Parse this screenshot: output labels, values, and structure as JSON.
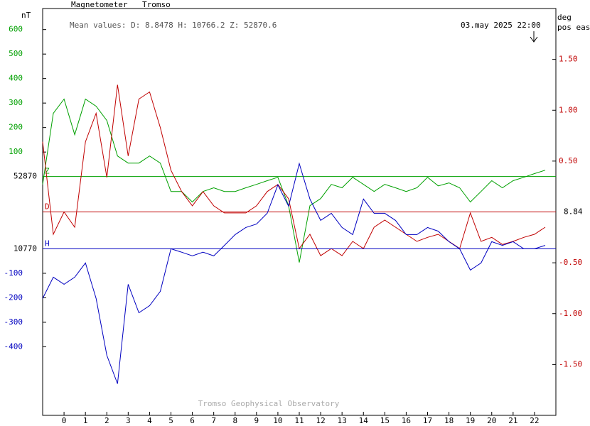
{
  "chart_data": {
    "type": "line",
    "title": "Magnetometer",
    "station": "Tromso",
    "left_unit": "nT",
    "right_unit": "deg",
    "right_unit_note": "pos east",
    "mean_values": "Mean values:  D: 8.8478   H: 10766.2   Z: 52870.6",
    "timestamp": "03.may 2025 22:00",
    "footer": "Tromso Geophysical Observatory",
    "x": [
      -1,
      -0.5,
      0,
      0.5,
      1,
      1.5,
      2,
      2.5,
      3,
      3.5,
      4,
      4.5,
      5,
      5.5,
      6,
      6.5,
      7,
      7.5,
      8,
      8.5,
      9,
      9.5,
      10,
      10.5,
      11,
      11.5,
      12,
      12.5,
      13,
      13.5,
      14,
      14.5,
      15,
      15.5,
      16,
      16.5,
      17,
      17.5,
      18,
      18.5,
      19,
      19.5,
      20,
      20.5,
      21,
      21.5,
      22,
      22.5
    ],
    "xlim": [
      -1,
      23
    ],
    "xticks": [
      0,
      1,
      2,
      3,
      4,
      5,
      6,
      7,
      8,
      9,
      10,
      11,
      12,
      13,
      14,
      15,
      16,
      17,
      18,
      19,
      20,
      21,
      22
    ],
    "ylim": [
      -975,
      686
    ],
    "yticks": [
      100,
      200,
      300,
      400,
      500,
      600
    ],
    "y3lim": [
      -680,
      981
    ],
    "y3ticks": [
      -100,
      -200,
      -300,
      -400
    ],
    "y2lim": [
      -2,
      2
    ],
    "y2ticks": [
      {
        "value": 1.5,
        "label": "1.50"
      },
      {
        "value": 1.0,
        "label": "1.00"
      },
      {
        "value": 0.5,
        "label": "0.50"
      },
      {
        "value": -0.5,
        "label": "-0.50"
      },
      {
        "value": -1.0,
        "label": "-1.00"
      },
      {
        "value": -1.5,
        "label": "-1.50"
      }
    ],
    "series": [
      {
        "name": "Z",
        "color": "#00a000",
        "axis": "y",
        "baseline_label": "52870",
        "values": [
          -32,
          258,
          316,
          171,
          316,
          287,
          229,
          84,
          55,
          55,
          84,
          55,
          -61,
          -61,
          -104,
          -61,
          -46,
          -61,
          -61,
          -46,
          -32,
          -17,
          -3,
          -119,
          -351,
          -119,
          -90,
          -32,
          -46,
          -3,
          -32,
          -61,
          -32,
          -46,
          -61,
          -46,
          -3,
          -38,
          -26,
          -46,
          -104,
          -61,
          -17,
          -46,
          -17,
          -3,
          12,
          26
        ]
      },
      {
        "name": "D",
        "color": "#c00000",
        "axis": "y2",
        "baseline_label": "8.84",
        "values": [
          0.69,
          -0.22,
          0.0,
          -0.15,
          0.69,
          0.97,
          0.34,
          1.25,
          0.55,
          1.11,
          1.18,
          0.83,
          0.41,
          0.2,
          0.06,
          0.2,
          0.06,
          -0.01,
          -0.01,
          -0.01,
          0.06,
          0.2,
          0.27,
          0.13,
          -0.36,
          -0.22,
          -0.43,
          -0.36,
          -0.43,
          -0.29,
          -0.36,
          -0.15,
          -0.08,
          -0.15,
          -0.22,
          -0.29,
          -0.25,
          -0.22,
          -0.29,
          -0.36,
          -0.01,
          -0.29,
          -0.25,
          -0.32,
          -0.29,
          -0.25,
          -0.22,
          -0.15
        ]
      },
      {
        "name": "H",
        "color": "#0000c0",
        "axis": "y3",
        "baseline_label": "10770",
        "values": [
          -203,
          -116,
          -145,
          -116,
          -58,
          -203,
          -435,
          -551,
          -145,
          -261,
          -232,
          -174,
          0,
          -14,
          -29,
          -14,
          -29,
          14,
          58,
          87,
          101,
          145,
          261,
          174,
          348,
          203,
          116,
          145,
          87,
          58,
          203,
          145,
          145,
          116,
          58,
          58,
          87,
          72,
          29,
          0,
          -87,
          -58,
          29,
          14,
          29,
          0,
          0,
          14
        ]
      }
    ]
  }
}
